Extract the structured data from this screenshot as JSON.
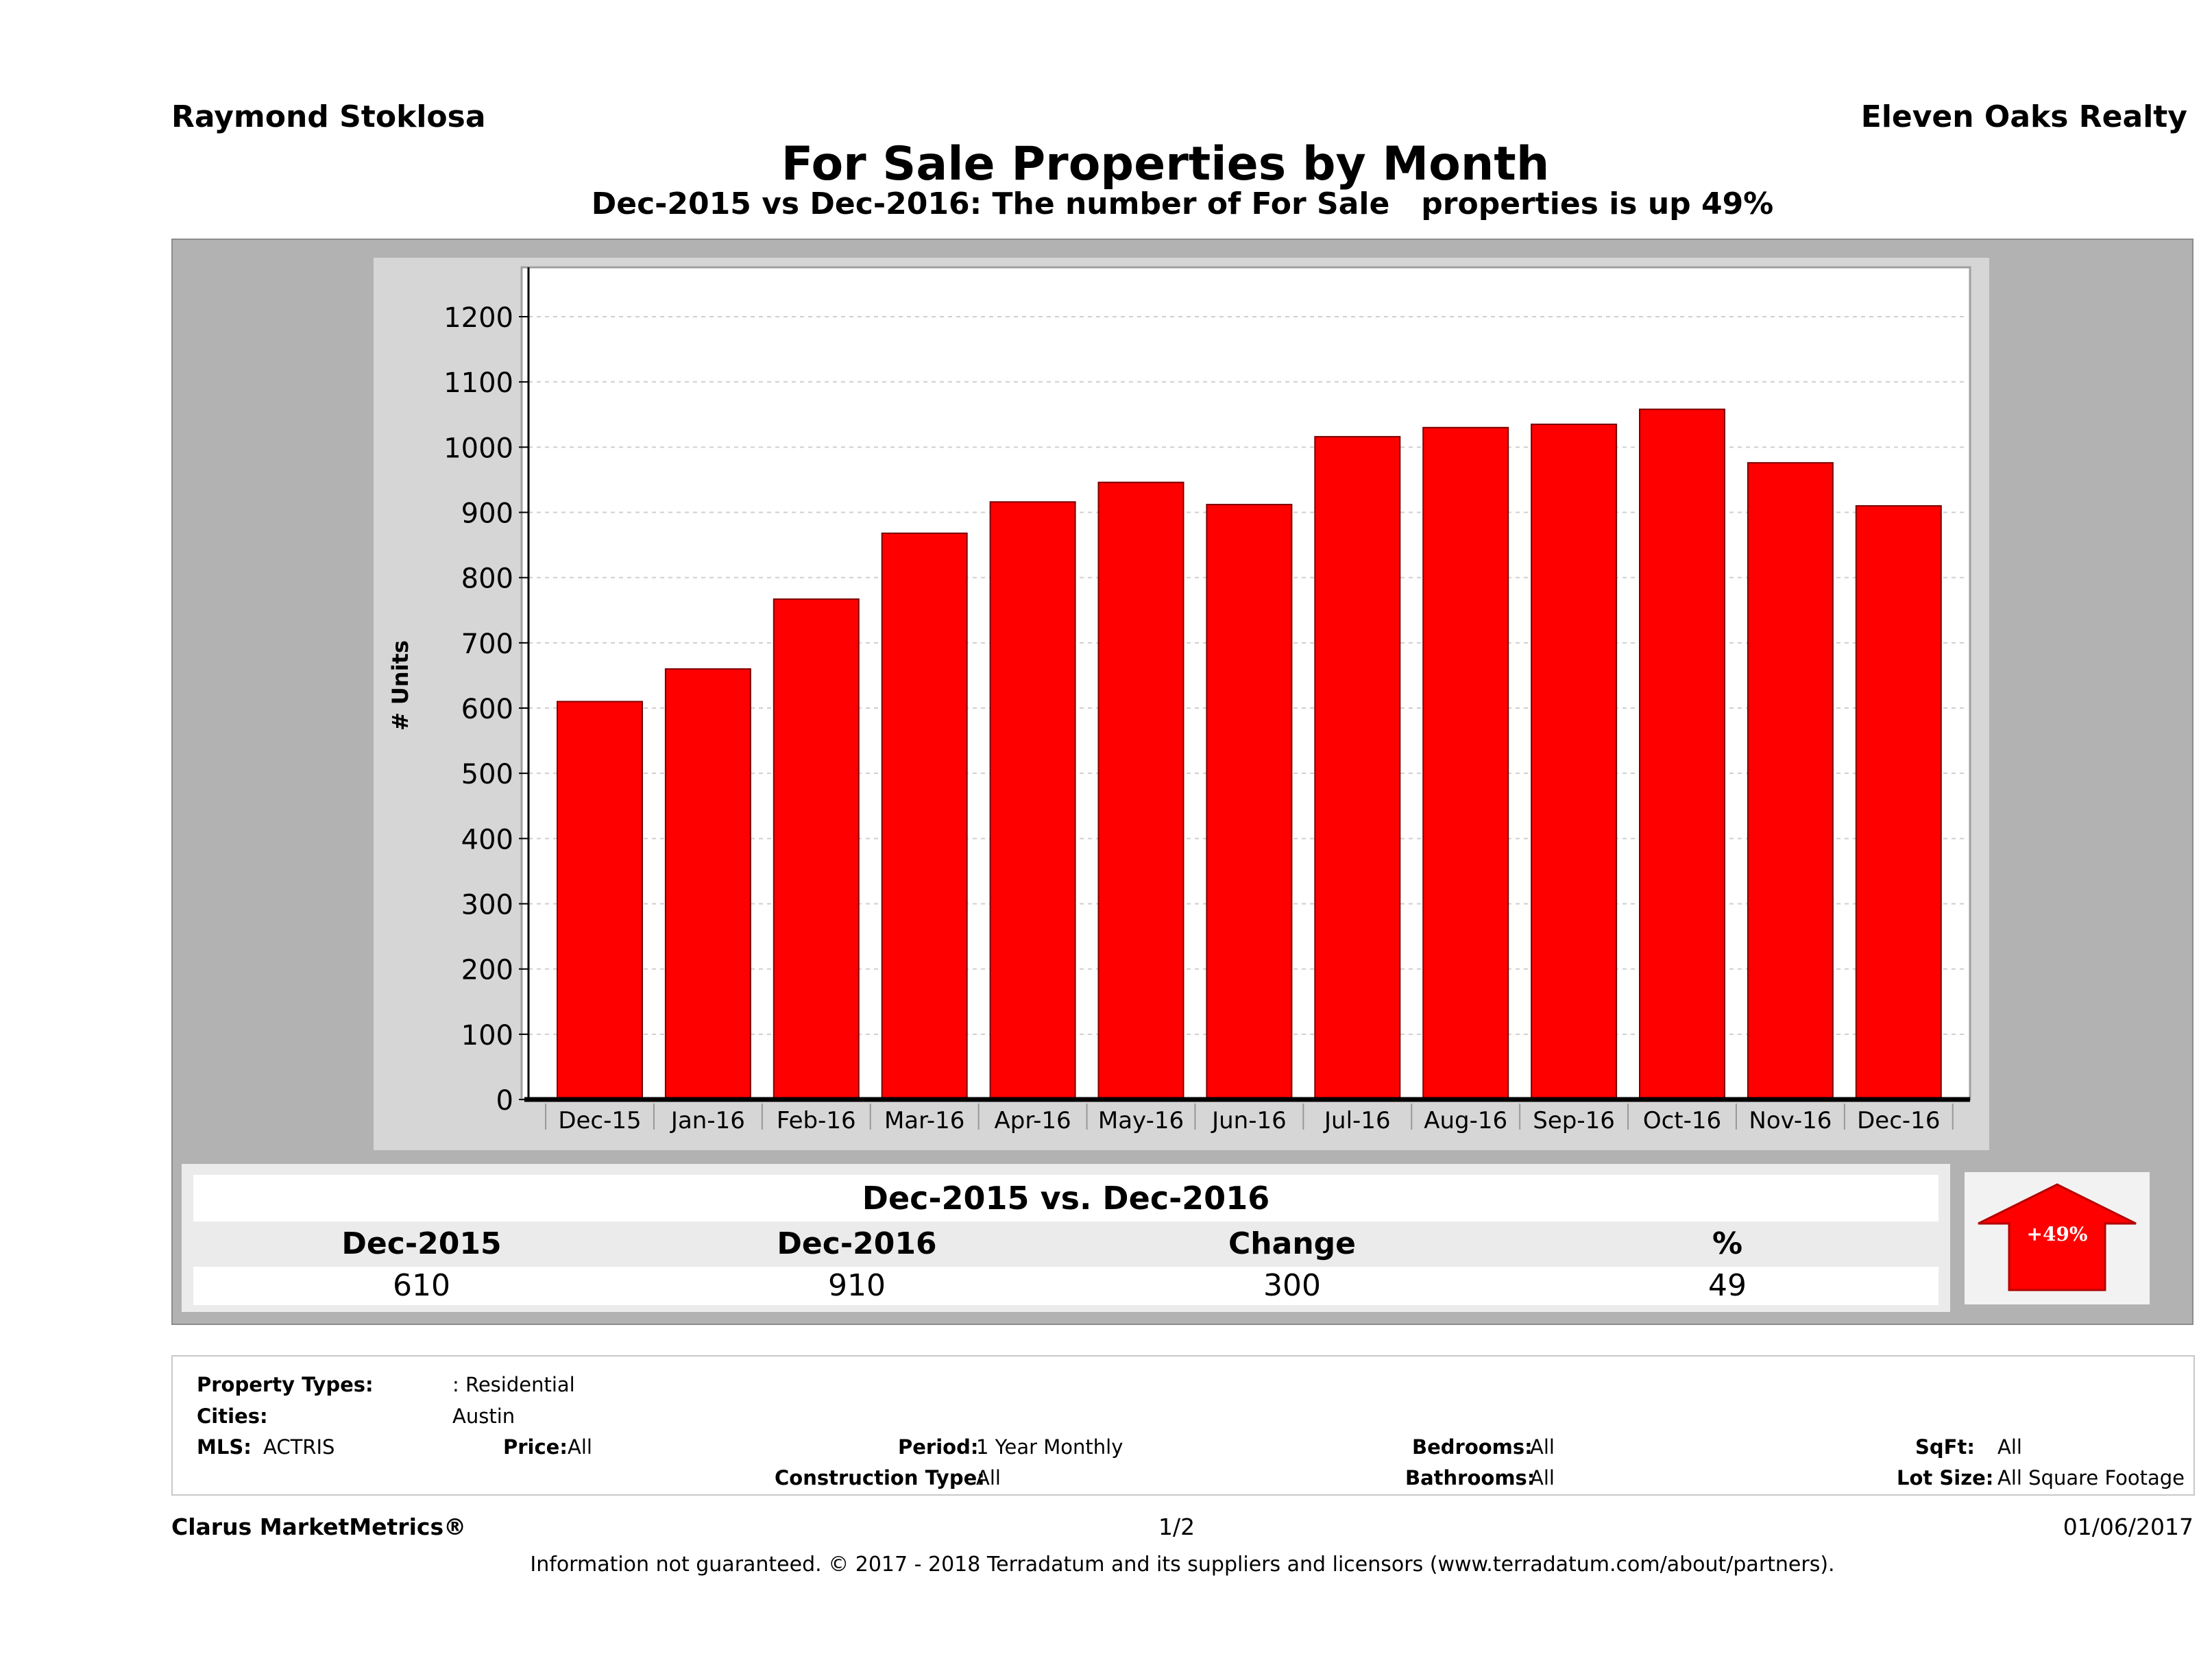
{
  "header": {
    "agent": "Raymond Stoklosa",
    "company": "Eleven Oaks Realty",
    "title": "For Sale Properties by Month",
    "subtitle": "Dec-2015 vs Dec-2016: The number of For Sale   properties is up 49%"
  },
  "chart_data": {
    "type": "bar",
    "title": "For Sale Properties by Month",
    "ylabel": "# Units",
    "xlabel": "",
    "categories": [
      "Dec-15",
      "Jan-16",
      "Feb-16",
      "Mar-16",
      "Apr-16",
      "May-16",
      "Jun-16",
      "Jul-16",
      "Aug-16",
      "Sep-16",
      "Oct-16",
      "Nov-16",
      "Dec-16"
    ],
    "values": [
      610,
      660,
      767,
      868,
      916,
      946,
      912,
      1016,
      1030,
      1035,
      1058,
      976,
      910
    ],
    "ylim": [
      0,
      1200
    ],
    "yticks": [
      0,
      100,
      200,
      300,
      400,
      500,
      600,
      700,
      800,
      900,
      1000,
      1100,
      1200
    ],
    "grid": true,
    "bar_color": "#ff0000"
  },
  "summary": {
    "title": "Dec-2015 vs. Dec-2016",
    "headers": [
      "Dec-2015",
      "Dec-2016",
      "Change",
      "%"
    ],
    "values": [
      "610",
      "910",
      "300",
      "49"
    ],
    "badge": "+49%",
    "badge_color": "#ff0000"
  },
  "filters": {
    "property_types_label": "Property Types:",
    "property_types_value": ": Residential",
    "cities_label": "Cities:",
    "cities_value": "Austin",
    "mls_label": "MLS:",
    "mls_value": "ACTRIS",
    "price_label": "Price:",
    "price_value": "All",
    "period_label": "Period:",
    "period_value": "1 Year Monthly",
    "construction_label": "Construction Type:",
    "construction_value": "All",
    "bedrooms_label": "Bedrooms:",
    "bedrooms_value": "All",
    "bathrooms_label": "Bathrooms:",
    "bathrooms_value": "All",
    "sqft_label": "SqFt:",
    "sqft_value": "All",
    "lotsize_label": "Lot Size:",
    "lotsize_value": "All Square Footage"
  },
  "footer": {
    "brand": "Clarus MarketMetrics®",
    "page": "1/2",
    "date": "01/06/2017",
    "disclaimer": "Information not guaranteed. © 2017 - 2018 Terradatum and its suppliers and licensors (www.terradatum.com/about/partners)."
  }
}
